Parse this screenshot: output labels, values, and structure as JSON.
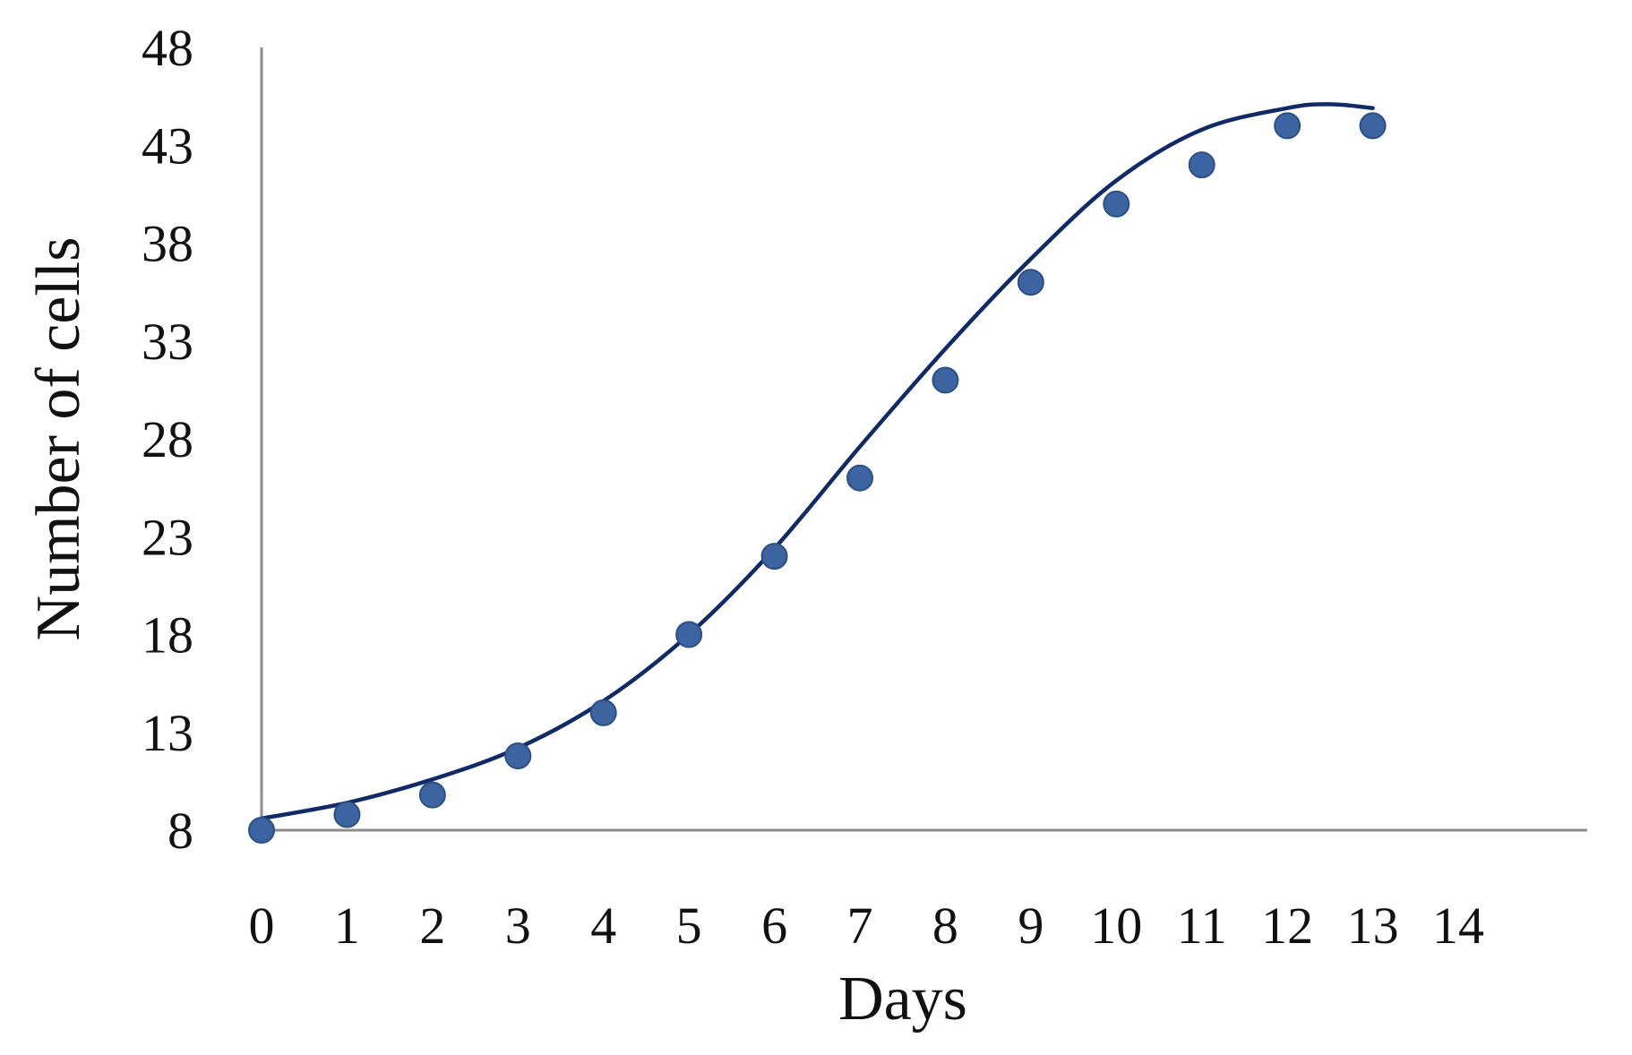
{
  "chart_data": {
    "type": "scatter",
    "title": "",
    "xlabel": "Days",
    "ylabel": "Number of cells",
    "xlim": [
      0,
      14
    ],
    "ylim": [
      8,
      48
    ],
    "x_ticks": [
      0,
      1,
      2,
      3,
      4,
      5,
      6,
      7,
      8,
      9,
      10,
      11,
      12,
      13,
      14
    ],
    "y_ticks": [
      8,
      13,
      18,
      23,
      28,
      33,
      38,
      43,
      48
    ],
    "grid": false,
    "legend": "none",
    "series": [
      {
        "kind": "points",
        "color": "#3b64a0",
        "x": [
          0,
          1,
          2,
          3,
          4,
          5,
          6,
          7,
          8,
          9,
          10,
          11,
          12,
          13
        ],
        "y": [
          8,
          8.8,
          9.8,
          11.8,
          14,
          18,
          22,
          26,
          31,
          36,
          40,
          42,
          44,
          44
        ]
      },
      {
        "kind": "fitted-curve",
        "color": "#0f2a66",
        "x": [
          0,
          1,
          2,
          3,
          4,
          5,
          6,
          7,
          8,
          9,
          10,
          11,
          12,
          12.5,
          13
        ],
        "y": [
          8.6,
          9.4,
          10.6,
          12.2,
          14.6,
          18,
          22.4,
          27.6,
          32.6,
          37.2,
          41.2,
          43.8,
          44.9,
          45.1,
          44.9
        ]
      }
    ]
  }
}
